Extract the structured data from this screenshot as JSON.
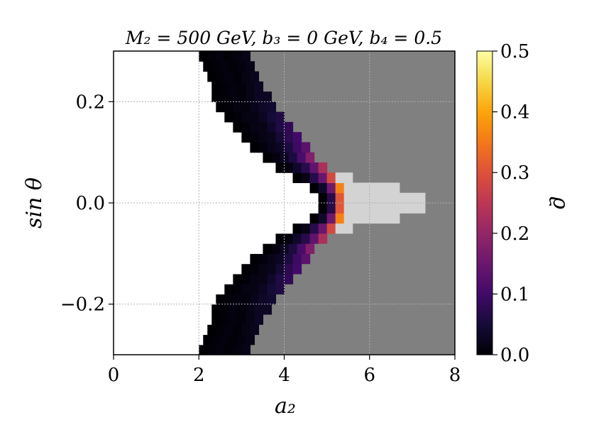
{
  "chart_data": {
    "type": "heatmap",
    "title": "M₂ = 500 GeV,  b₃ = 0 GeV,  b₄ = 0.5",
    "xlabel": "a₂",
    "ylabel": "sin θ",
    "colorbar_label": "ϱ",
    "xlim": [
      0,
      8
    ],
    "ylim": [
      -0.3,
      0.3
    ],
    "x_ticks": [
      0,
      2,
      4,
      6,
      8
    ],
    "x_tick_labels": [
      "0",
      "2",
      "4",
      "6",
      "8"
    ],
    "y_ticks": [
      0.2,
      0.0,
      -0.2
    ],
    "y_tick_labels": [
      "0.2",
      "0.0",
      "−0.2"
    ],
    "colorbar_ticks": [
      0.0,
      0.1,
      0.2,
      0.3,
      0.4,
      0.5
    ],
    "colorbar_tick_labels": [
      "0.0",
      "0.1",
      "0.2",
      "0.3",
      "0.4",
      "0.5"
    ],
    "colorbar_range": [
      0.0,
      0.5
    ],
    "colormap": "inferno",
    "grid": true,
    "regions": {
      "unphysical_left_color": "#ffffff",
      "excluded_color": "#808080",
      "allowed_no_value_color": "#d3d3d3"
    },
    "cell_grid": {
      "nx": 40,
      "ny": 30,
      "dx": 0.2,
      "dy": 0.02
    },
    "band_profile": {
      "sin_theta": [
        0.29,
        0.27,
        0.25,
        0.23,
        0.21,
        0.19,
        0.17,
        0.15,
        0.13,
        0.11,
        0.09,
        0.07,
        0.05,
        0.03,
        0.01
      ],
      "a2_start": [
        2.0,
        2.1,
        2.2,
        2.3,
        2.3,
        2.4,
        2.6,
        2.8,
        3.0,
        3.2,
        3.5,
        3.8,
        4.2,
        4.6,
        4.8
      ],
      "a2_end": [
        3.2,
        3.3,
        3.4,
        3.5,
        3.6,
        3.8,
        4.0,
        4.2,
        4.4,
        4.6,
        4.8,
        5.0,
        5.2,
        5.4,
        5.4
      ],
      "rho_max_row": [
        0.01,
        0.01,
        0.015,
        0.02,
        0.03,
        0.04,
        0.06,
        0.08,
        0.1,
        0.13,
        0.17,
        0.22,
        0.28,
        0.36,
        0.3
      ]
    },
    "light_profile": {
      "sin_theta": [
        0.05,
        0.03,
        0.01
      ],
      "a2_end": [
        5.6,
        6.7,
        7.3
      ]
    }
  }
}
